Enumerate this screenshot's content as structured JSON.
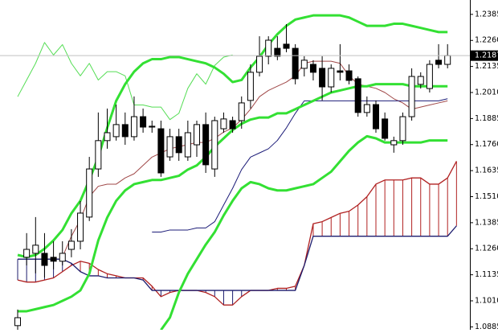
{
  "chart_data": {
    "type": "candlestick",
    "ylim": [
      1.0871,
      1.2454
    ],
    "yticks": [
      1.2385,
      {
        "value": 1.226,
        "label": "1.2260"
      },
      1.2135,
      {
        "value": 1.201,
        "label": "1.2010"
      },
      1.1885,
      {
        "value": 1.176,
        "label": "1.1760"
      },
      1.1635,
      {
        "value": 1.151,
        "label": "1.1510"
      },
      1.1385,
      {
        "value": 1.126,
        "label": "1.1260"
      },
      1.1135,
      {
        "value": 1.101,
        "label": "1.1010"
      },
      1.0885
    ],
    "current_price": 1.2187,
    "up_color": "#ffffff",
    "down_color": "#000000",
    "ohlc": {
      "open": [
        1.0891,
        1.1219,
        1.1238,
        1.1238,
        1.1219,
        1.12,
        1.1257,
        1.1296,
        1.1412,
        1.1643,
        1.1779,
        1.1798,
        1.1856,
        1.1798,
        1.1894,
        1.1844,
        1.1836,
        1.1701,
        1.1798,
        1.1701,
        1.1759,
        1.1856,
        1.1643,
        1.1836,
        1.1875,
        1.1875,
        1.1972,
        1.2107,
        1.2184,
        1.2222,
        1.2242,
        1.2222,
        1.2126,
        1.2145,
        1.2126,
        1.2037,
        1.2114,
        1.2114,
        1.2076,
        1.1914,
        1.1952,
        1.1883,
        1.1759,
        1.1779,
        1.1894,
        1.2049,
        1.2029,
        1.2165,
        1.2145
      ],
      "high": [
        1.0968,
        1.1335,
        1.1412,
        1.1335,
        1.1296,
        1.1296,
        1.1354,
        1.1489,
        1.1701,
        1.1914,
        1.1933,
        1.1952,
        1.1914,
        1.1991,
        1.1933,
        1.1875,
        1.1875,
        1.1836,
        1.1836,
        1.1875,
        1.1875,
        1.1914,
        1.1894,
        1.1914,
        1.1894,
        1.1991,
        1.2145,
        1.228,
        1.228,
        1.228,
        1.2338,
        1.2242,
        1.2184,
        1.2165,
        1.2184,
        1.2145,
        1.2242,
        1.2145,
        1.2087,
        1.1991,
        1.1972,
        1.1914,
        1.1798,
        1.1914,
        1.2126,
        1.2107,
        1.2165,
        1.2242,
        1.2242
      ],
      "low": [
        1.0871,
        1.118,
        1.1142,
        1.1122,
        1.1161,
        1.118,
        1.1219,
        1.1257,
        1.1393,
        1.1605,
        1.174,
        1.1779,
        1.1759,
        1.1779,
        1.1817,
        1.1817,
        1.1605,
        1.1682,
        1.1682,
        1.1682,
        1.1701,
        1.1624,
        1.1605,
        1.1817,
        1.1817,
        1.1836,
        1.1933,
        1.2087,
        1.2145,
        1.2165,
        1.2203,
        1.2049,
        1.2087,
        1.2068,
        1.1972,
        1.201,
        1.2068,
        1.2049,
        1.1894,
        1.1894,
        1.1817,
        1.1779,
        1.1721,
        1.1759,
        1.1875,
        1.2029,
        1.201,
        1.2126,
        1.2126
      ],
      "close": [
        1.0929,
        1.1257,
        1.1277,
        1.118,
        1.12,
        1.1238,
        1.1296,
        1.1431,
        1.1643,
        1.1779,
        1.1817,
        1.1856,
        1.1798,
        1.1894,
        1.1844,
        1.1848,
        1.1624,
        1.1798,
        1.1721,
        1.1817,
        1.1856,
        1.1663,
        1.1875,
        1.1883,
        1.1836,
        1.196,
        1.2107,
        1.2184,
        1.2261,
        1.2184,
        1.2222,
        1.2076,
        1.2165,
        1.2107,
        1.2037,
        1.2126,
        1.2107,
        1.2068,
        1.1914,
        1.1952,
        1.1836,
        1.179,
        1.1779,
        1.1894,
        1.2087,
        1.2087,
        1.2145,
        1.2145,
        1.2187
      ]
    },
    "lines": [
      {
        "color": "#33e033",
        "width": 3,
        "values": [
          1.123,
          1.122,
          1.123,
          1.126,
          1.13,
          1.135,
          1.143,
          1.149,
          1.159,
          1.17,
          1.184,
          1.197,
          1.205,
          1.211,
          1.215,
          1.217,
          1.217,
          1.218,
          1.218,
          1.217,
          1.216,
          1.215,
          1.213,
          1.21,
          1.206,
          1.207,
          1.213,
          1.218,
          1.224,
          1.229,
          1.233,
          1.236,
          1.237,
          1.238,
          1.238,
          1.238,
          1.238,
          1.237,
          1.235,
          1.233,
          1.233,
          1.233,
          1.234,
          1.234,
          1.233,
          1.232,
          1.231,
          1.23,
          1.23,
          null
        ]
      },
      {
        "color": "#33e033",
        "width": 3,
        "values": [
          1.096,
          1.096,
          1.097,
          1.098,
          1.099,
          1.101,
          1.103,
          1.106,
          1.114,
          1.13,
          1.141,
          1.149,
          1.154,
          1.157,
          1.158,
          1.159,
          1.159,
          1.16,
          1.161,
          1.164,
          1.166,
          1.17,
          1.175,
          1.179,
          1.183,
          1.186,
          1.188,
          1.189,
          1.189,
          1.191,
          1.191,
          1.193,
          1.195,
          1.197,
          1.199,
          1.201,
          1.202,
          1.203,
          1.204,
          1.204,
          1.205,
          1.205,
          1.205,
          1.205,
          1.204,
          1.204,
          1.204,
          1.204,
          1.204,
          null
        ]
      },
      {
        "color": "#33e033",
        "width": 3,
        "values": [
          null,
          null,
          null,
          null,
          null,
          null,
          null,
          null,
          null,
          null,
          null,
          null,
          null,
          null,
          null,
          null,
          1.087,
          1.093,
          1.105,
          1.114,
          1.121,
          1.128,
          1.134,
          1.142,
          1.149,
          1.155,
          1.158,
          1.157,
          1.155,
          1.154,
          1.154,
          1.155,
          1.156,
          1.157,
          1.16,
          1.163,
          1.168,
          1.173,
          1.177,
          1.18,
          1.179,
          1.177,
          1.177,
          1.177,
          1.177,
          1.177,
          1.178,
          1.178,
          1.178,
          null
        ]
      },
      {
        "color": "#55dd55",
        "width": 1,
        "values": [
          1.199,
          1.207,
          1.215,
          1.225,
          1.219,
          1.224,
          1.215,
          1.209,
          1.215,
          1.207,
          1.211,
          1.211,
          1.209,
          1.195,
          1.195,
          1.194,
          1.194,
          1.188,
          1.191,
          1.203,
          1.21,
          1.205,
          1.214,
          1.218,
          1.219,
          null,
          null,
          null,
          null,
          null,
          null,
          null,
          null,
          null,
          null,
          null,
          null,
          null,
          null,
          null,
          null,
          null,
          null,
          null,
          null,
          null,
          null,
          null,
          null,
          null
        ]
      },
      {
        "color": "#a04848",
        "width": 1,
        "values": [
          null,
          null,
          null,
          null,
          null,
          1.122,
          1.132,
          1.14,
          1.151,
          1.156,
          1.157,
          1.157,
          1.16,
          1.162,
          1.166,
          1.17,
          1.172,
          1.174,
          1.175,
          1.176,
          1.177,
          1.177,
          1.179,
          1.182,
          1.184,
          1.188,
          1.193,
          1.199,
          1.202,
          1.204,
          1.206,
          1.209,
          1.215,
          1.216,
          1.216,
          1.216,
          1.215,
          1.209,
          1.205,
          1.204,
          1.203,
          1.201,
          1.198,
          1.196,
          1.193,
          1.194,
          1.195,
          1.196,
          1.197,
          null
        ]
      },
      {
        "color": "#1c1c78",
        "width": 1,
        "values": [
          null,
          null,
          null,
          null,
          null,
          null,
          null,
          null,
          null,
          null,
          null,
          null,
          null,
          null,
          null,
          1.134,
          1.134,
          1.135,
          1.135,
          1.135,
          1.136,
          1.136,
          1.139,
          1.147,
          1.155,
          1.164,
          1.17,
          1.172,
          1.174,
          1.178,
          1.184,
          1.191,
          1.197,
          1.197,
          1.197,
          1.197,
          1.197,
          1.197,
          1.197,
          1.197,
          1.197,
          1.197,
          1.197,
          1.197,
          1.197,
          1.197,
          1.197,
          1.197,
          1.198,
          null
        ]
      }
    ],
    "cloud": {
      "span_a": {
        "color": "#b02020",
        "values": [
          1.111,
          1.11,
          1.11,
          1.111,
          1.112,
          1.115,
          1.118,
          1.12,
          1.119,
          1.116,
          1.114,
          1.113,
          1.112,
          1.112,
          1.112,
          1.108,
          1.103,
          1.105,
          1.106,
          1.106,
          1.106,
          1.105,
          1.103,
          1.099,
          1.099,
          1.103,
          1.106,
          1.106,
          1.106,
          1.107,
          1.107,
          1.108,
          1.118,
          1.138,
          1.139,
          1.141,
          1.143,
          1.144,
          1.147,
          1.151,
          1.157,
          1.159,
          1.159,
          1.159,
          1.16,
          1.16,
          1.157,
          1.157,
          1.16,
          1.168
        ]
      },
      "span_b": {
        "color": "#1c1c6e",
        "values": [
          1.121,
          1.121,
          1.121,
          1.121,
          1.121,
          1.121,
          1.119,
          1.115,
          1.113,
          1.113,
          1.112,
          1.112,
          1.112,
          1.112,
          1.111,
          1.106,
          1.106,
          1.106,
          1.106,
          1.106,
          1.106,
          1.106,
          1.106,
          1.106,
          1.106,
          1.106,
          1.106,
          1.106,
          1.106,
          1.106,
          1.106,
          1.106,
          1.118,
          1.132,
          1.132,
          1.132,
          1.132,
          1.132,
          1.132,
          1.132,
          1.132,
          1.132,
          1.132,
          1.132,
          1.132,
          1.132,
          1.132,
          1.132,
          1.132,
          1.137
        ]
      }
    }
  }
}
